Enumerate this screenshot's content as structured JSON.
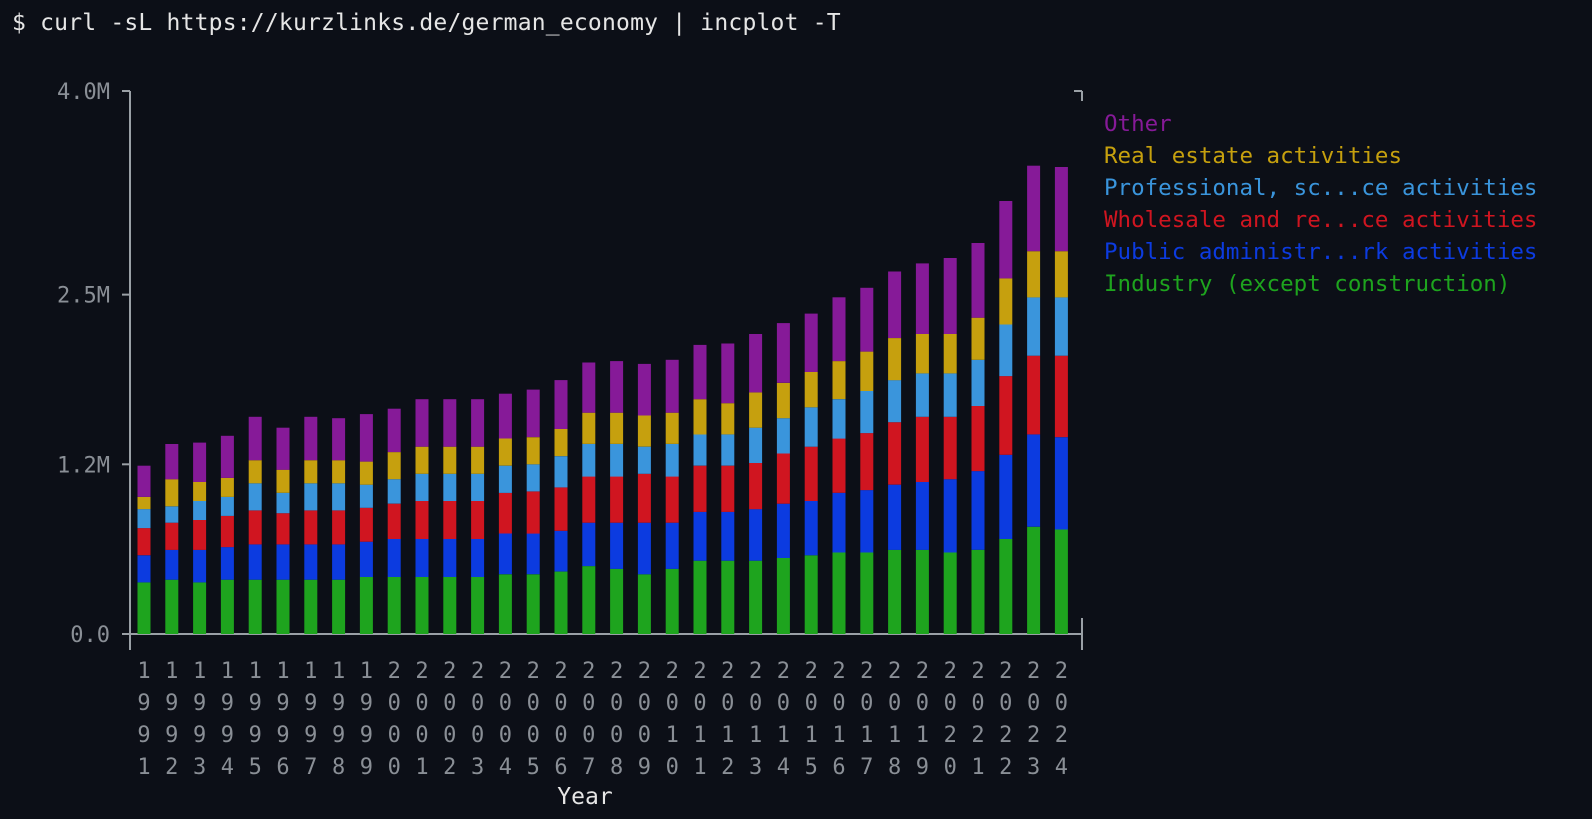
{
  "terminal": {
    "command": "$ curl -sL https://kurzlinks.de/german_economy | incplot -T"
  },
  "colors": {
    "background": "#0c0f17",
    "axis": "#9aa0a6",
    "tick_text": "#8a8f96"
  },
  "chart_data": {
    "type": "bar",
    "stacked": true,
    "title": "",
    "xlabel": "Year",
    "ylabel": "",
    "ylim": [
      0,
      4000000
    ],
    "y_ticks": [
      {
        "value": 0,
        "label": "0.0"
      },
      {
        "value": 1250000,
        "label": "1.2M"
      },
      {
        "value": 2500000,
        "label": "2.5M"
      },
      {
        "value": 4000000,
        "label": "4.0M"
      }
    ],
    "legend_position": "right",
    "categories": [
      "1991",
      "1992",
      "1993",
      "1994",
      "1995",
      "1996",
      "1997",
      "1998",
      "1999",
      "2000",
      "2001",
      "2002",
      "2003",
      "2004",
      "2005",
      "2006",
      "2007",
      "2008",
      "2009",
      "2010",
      "2011",
      "2012",
      "2013",
      "2014",
      "2015",
      "2016",
      "2017",
      "2018",
      "2019",
      "2020",
      "2021",
      "2022",
      "2023",
      "2024"
    ],
    "series": [
      {
        "name": "Industry (except construction)",
        "color": "#1ea41e",
        "values": [
          380000,
          400000,
          380000,
          400000,
          400000,
          400000,
          400000,
          400000,
          420000,
          420000,
          420000,
          420000,
          420000,
          440000,
          440000,
          460000,
          500000,
          480000,
          440000,
          480000,
          540000,
          540000,
          540000,
          560000,
          580000,
          600000,
          600000,
          620000,
          620000,
          600000,
          620000,
          700000,
          790000,
          770000
        ]
      },
      {
        "name": "Public administr...rk activities",
        "color": "#0c3be0",
        "values": [
          200000,
          220000,
          240000,
          240000,
          260000,
          260000,
          260000,
          260000,
          260000,
          280000,
          280000,
          280000,
          280000,
          300000,
          300000,
          300000,
          320000,
          340000,
          380000,
          340000,
          360000,
          360000,
          380000,
          400000,
          400000,
          440000,
          460000,
          480000,
          500000,
          540000,
          580000,
          620000,
          680000,
          680000
        ]
      },
      {
        "name": "Wholesale and re...ce activities",
        "color": "#d01520",
        "values": [
          200000,
          200000,
          220000,
          230000,
          250000,
          230000,
          250000,
          250000,
          250000,
          260000,
          280000,
          280000,
          280000,
          300000,
          310000,
          320000,
          340000,
          340000,
          360000,
          340000,
          340000,
          340000,
          340000,
          370000,
          400000,
          400000,
          420000,
          460000,
          480000,
          460000,
          480000,
          580000,
          580000,
          600000
        ]
      },
      {
        "name": "Professional, sc...ce activities",
        "color": "#3a95dc",
        "values": [
          140000,
          120000,
          140000,
          140000,
          200000,
          150000,
          200000,
          200000,
          170000,
          180000,
          200000,
          200000,
          200000,
          200000,
          200000,
          230000,
          240000,
          240000,
          200000,
          240000,
          230000,
          230000,
          260000,
          260000,
          290000,
          290000,
          310000,
          310000,
          320000,
          320000,
          340000,
          380000,
          430000,
          430000
        ]
      },
      {
        "name": "Real estate activities",
        "color": "#c6a00e",
        "values": [
          90000,
          200000,
          140000,
          140000,
          170000,
          170000,
          170000,
          170000,
          170000,
          200000,
          200000,
          200000,
          200000,
          200000,
          200000,
          200000,
          230000,
          230000,
          230000,
          230000,
          260000,
          230000,
          260000,
          260000,
          260000,
          280000,
          290000,
          310000,
          290000,
          290000,
          310000,
          340000,
          340000,
          340000
        ]
      },
      {
        "name": "Other",
        "color": "#861a98",
        "values": [
          230000,
          260000,
          290000,
          310000,
          320000,
          310000,
          320000,
          310000,
          350000,
          320000,
          350000,
          350000,
          350000,
          330000,
          350000,
          360000,
          370000,
          380000,
          380000,
          390000,
          400000,
          440000,
          430000,
          440000,
          430000,
          470000,
          470000,
          490000,
          520000,
          560000,
          550000,
          570000,
          630000,
          620000
        ]
      }
    ]
  }
}
